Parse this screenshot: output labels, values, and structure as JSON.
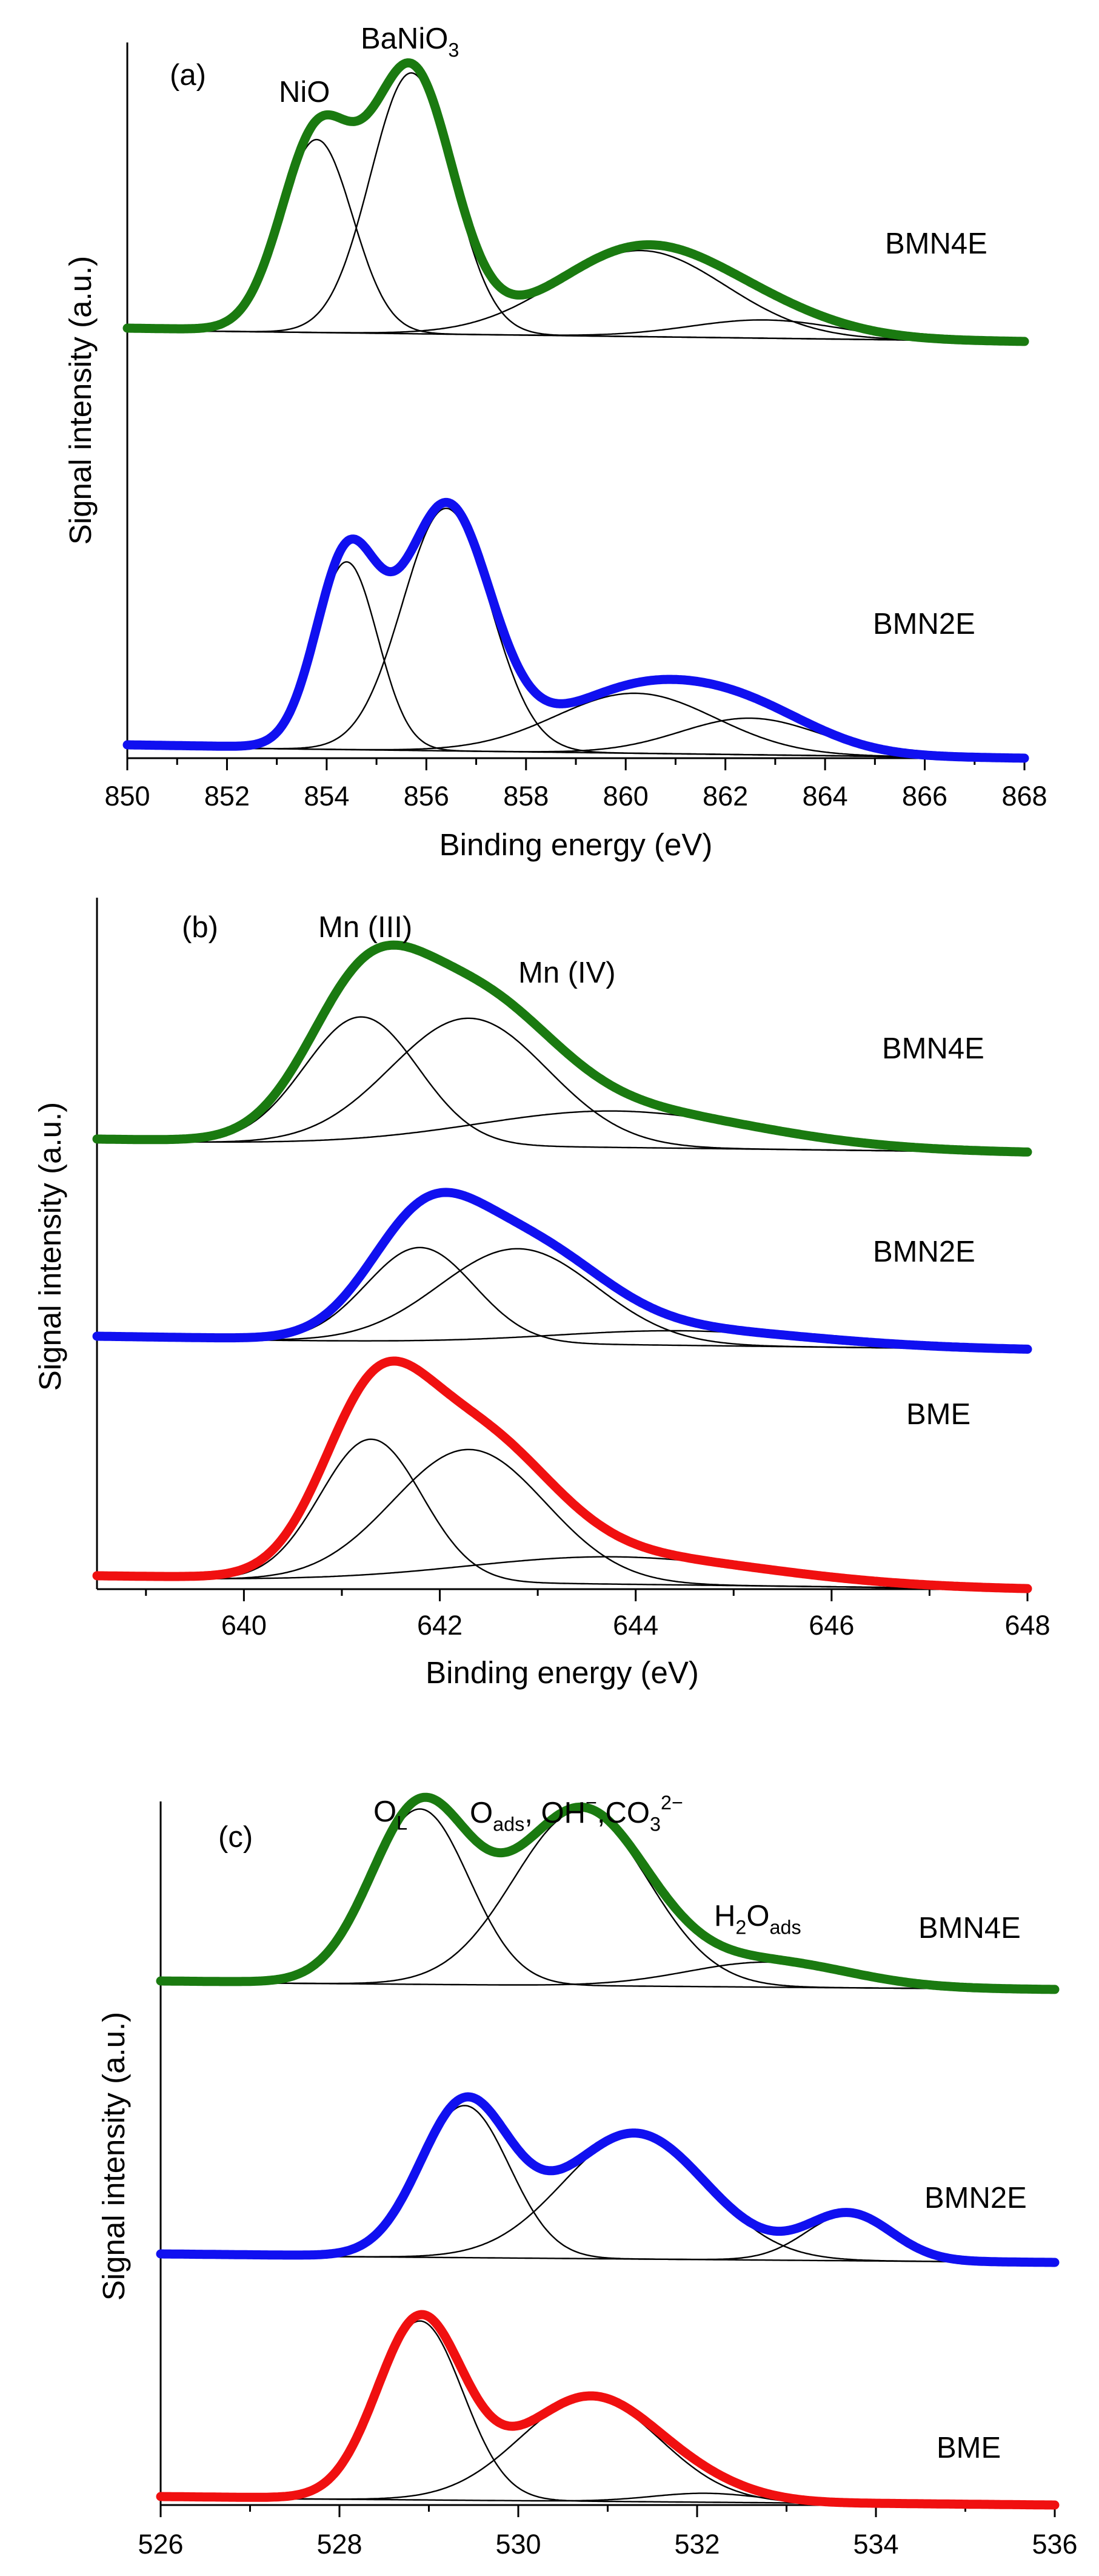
{
  "chart_data": [
    {
      "type": "line",
      "panel_label": "(a)",
      "xlabel": "Binding energy (eV)",
      "ylabel": "Signal intensity (a.u.)",
      "xlim": [
        850,
        868
      ],
      "xticks": [
        850,
        852,
        854,
        856,
        858,
        860,
        862,
        864,
        866,
        868
      ],
      "reverse_x": false,
      "annotations": [
        {
          "id": "nio",
          "text": "NiO"
        },
        {
          "id": "banio3",
          "text": "BaNiO",
          "sub": "3"
        }
      ],
      "series": [
        {
          "name": "BMN4E",
          "color": "#1a7a10",
          "peaks": [
            [
              853.8,
              0.74,
              0.72
            ],
            [
              855.7,
              1.0,
              0.82
            ],
            [
              860.3,
              0.33,
              1.7
            ],
            [
              862.8,
              0.07,
              1.5
            ]
          ]
        },
        {
          "name": "BMN2E",
          "color": "#1010f0",
          "peaks": [
            [
              854.4,
              0.72,
              0.62
            ],
            [
              856.4,
              0.93,
              0.88
            ],
            [
              860.2,
              0.23,
              1.6
            ],
            [
              862.5,
              0.14,
              1.4
            ]
          ]
        }
      ]
    },
    {
      "type": "line",
      "panel_label": "(b)",
      "xlabel": "Binding energy (eV)",
      "ylabel": "Signal intensity (a.u.)",
      "xlim": [
        638.5,
        648
      ],
      "xticks": [
        640,
        642,
        644,
        646,
        648
      ],
      "reverse_x": false,
      "annotations": [
        {
          "id": "mn3",
          "text": "Mn (III)"
        },
        {
          "id": "mn4",
          "text": "Mn (IV)"
        }
      ],
      "series": [
        {
          "name": "BMN4E",
          "color": "#1a7a10",
          "peaks": [
            [
              641.2,
              0.7,
              0.58
            ],
            [
              642.3,
              0.7,
              0.8
            ],
            [
              643.8,
              0.2,
              1.4
            ]
          ]
        },
        {
          "name": "BMN2E",
          "color": "#1010f0",
          "peaks": [
            [
              641.8,
              0.52,
              0.55
            ],
            [
              642.8,
              0.52,
              0.8
            ],
            [
              644.5,
              0.08,
              1.3
            ]
          ]
        },
        {
          "name": "BME",
          "color": "#f01010",
          "peaks": [
            [
              641.3,
              0.78,
              0.52
            ],
            [
              642.3,
              0.73,
              0.78
            ],
            [
              643.8,
              0.15,
              1.5
            ]
          ]
        }
      ]
    },
    {
      "type": "line",
      "panel_label": "(c)",
      "xlabel": "Binding energy (eV)",
      "ylabel": "Signal intensity (a.u.)",
      "xlim": [
        526,
        536
      ],
      "xticks": [
        526,
        528,
        530,
        532,
        534,
        536
      ],
      "reverse_x": false,
      "annotations": [
        {
          "id": "ol",
          "text": "O",
          "sub": "L"
        },
        {
          "id": "oads",
          "parts": [
            [
              "O",
              ""
            ],
            [
              "ads",
              "sub"
            ],
            [
              ", OH",
              ""
            ],
            [
              "−",
              "sup"
            ],
            [
              ",CO",
              ""
            ],
            [
              "3",
              "sub"
            ],
            [
              "2−",
              "sup"
            ]
          ]
        },
        {
          "id": "h2o",
          "parts": [
            [
              "H",
              ""
            ],
            [
              "2",
              "sub"
            ],
            [
              "O",
              ""
            ],
            [
              "ads",
              "sub"
            ]
          ]
        }
      ],
      "series": [
        {
          "name": "BMN4E",
          "color": "#1a7a10",
          "peaks": [
            [
              528.9,
              0.98,
              0.55
            ],
            [
              530.7,
              0.98,
              0.75
            ],
            [
              532.8,
              0.14,
              0.9
            ]
          ]
        },
        {
          "name": "BMN2E",
          "color": "#1010f0",
          "peaks": [
            [
              529.4,
              0.85,
              0.5
            ],
            [
              531.3,
              0.7,
              0.8
            ],
            [
              533.7,
              0.26,
              0.48
            ]
          ]
        },
        {
          "name": "BME",
          "color": "#f01010",
          "peaks": [
            [
              528.9,
              1.0,
              0.48
            ],
            [
              530.8,
              0.58,
              0.78
            ],
            [
              532.1,
              0.05,
              0.6
            ]
          ]
        }
      ]
    }
  ]
}
